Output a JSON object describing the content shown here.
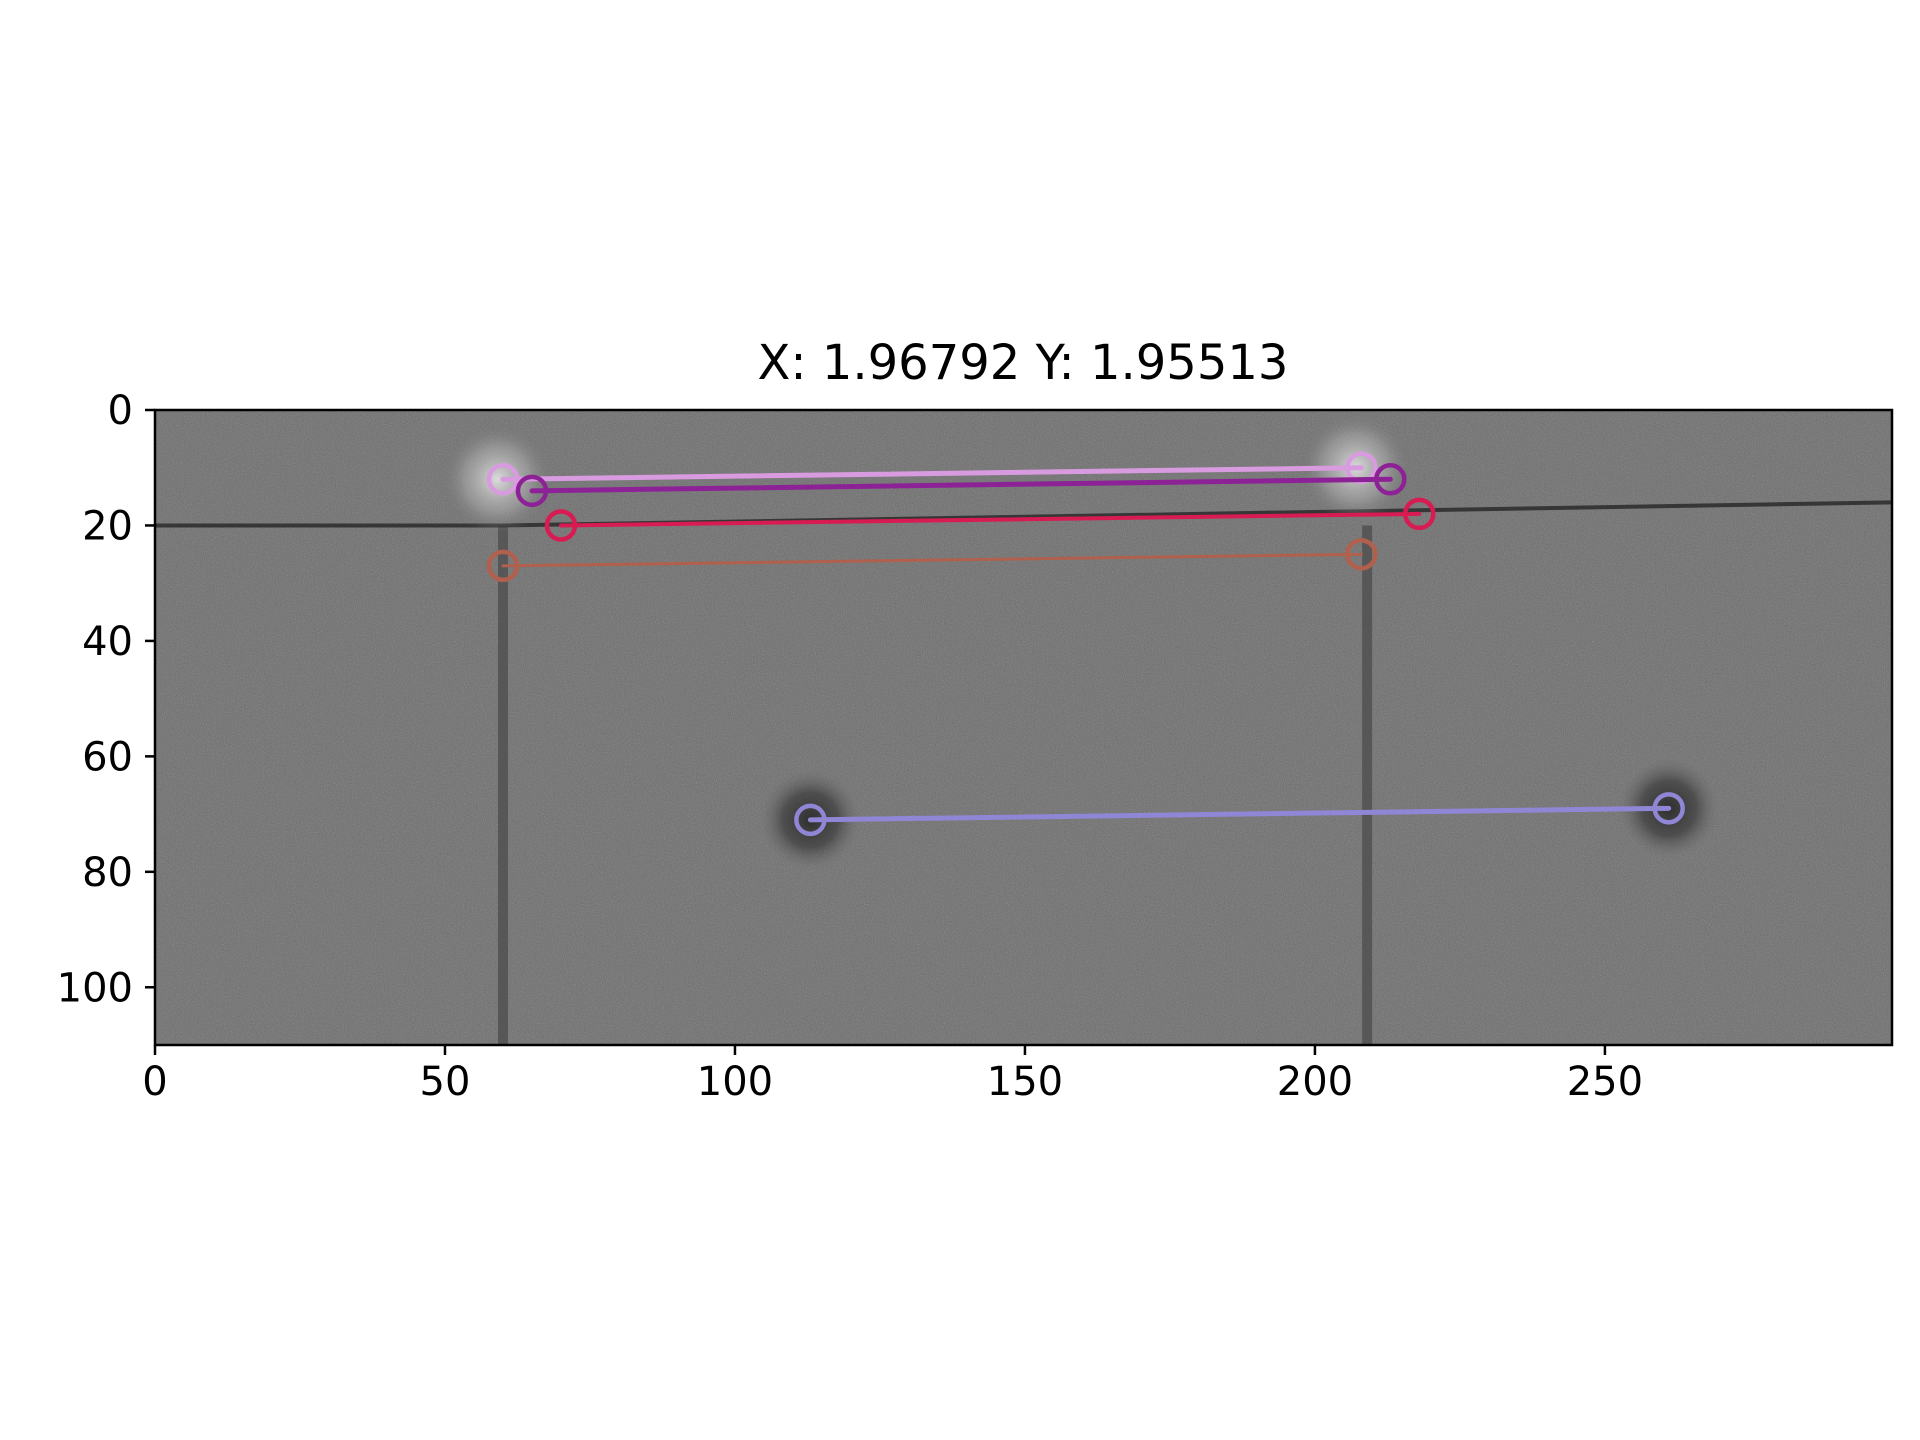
{
  "chart_data": {
    "type": "image-with-keypoint-matches",
    "title": "X: 1.96792 Y: 1.95513",
    "xlabel": "",
    "ylabel": "",
    "xlim": [
      0,
      299.5
    ],
    "ylim": [
      110,
      0
    ],
    "x_ticks": [
      0,
      50,
      100,
      150,
      200,
      250
    ],
    "y_ticks": [
      0,
      20,
      40,
      60,
      80,
      100
    ],
    "grid": false,
    "background_image": {
      "description_kind": "grayscale stone wall texture",
      "vertical_seams_x": [
        60,
        209
      ],
      "horizontal_seam_y": [
        20,
        20,
        16
      ],
      "dark_spots": [
        [
          113,
          71
        ],
        [
          261,
          69
        ]
      ],
      "light_blobs": [
        [
          59,
          12
        ],
        [
          207,
          10
        ]
      ]
    },
    "matches": [
      {
        "x1": 60,
        "y1": 12,
        "x2": 208,
        "y2": 10,
        "color": "#d99be0",
        "width": 5
      },
      {
        "x1": 65,
        "y1": 14,
        "x2": 213,
        "y2": 12,
        "color": "#8c2296",
        "width": 5
      },
      {
        "x1": 70,
        "y1": 20,
        "x2": 218,
        "y2": 18,
        "color": "#d81b52",
        "width": 4
      },
      {
        "x1": 60,
        "y1": 27,
        "x2": 208,
        "y2": 25,
        "color": "#b2604e",
        "width": 3
      },
      {
        "x1": 113,
        "y1": 71,
        "x2": 261,
        "y2": 69,
        "color": "#8f86d6",
        "width": 5
      }
    ]
  }
}
